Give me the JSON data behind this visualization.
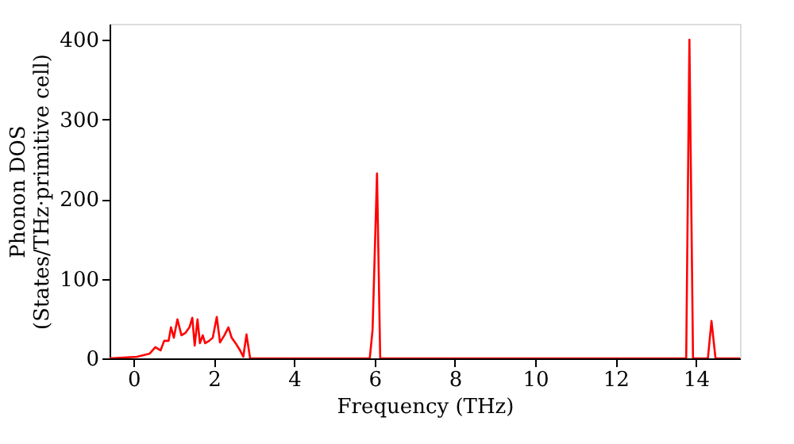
{
  "chart_data": {
    "type": "line",
    "xlabel": "Frequency (THz)",
    "ylabel": "Phonon DOS\n(States/THz·primitive cell)",
    "xlim": [
      -0.6,
      15.1
    ],
    "xticks": [
      0,
      2,
      4,
      6,
      8,
      10,
      12,
      14
    ],
    "ylim": [
      0,
      420
    ],
    "yticks": [
      0,
      100,
      200,
      300,
      400
    ],
    "grid": false,
    "line_style": "solid",
    "series": [
      {
        "color": "#ff0000",
        "x": [
          -0.6,
          0.08,
          0.4,
          0.54,
          0.67,
          0.76,
          0.87,
          0.93,
          1.0,
          1.09,
          1.19,
          1.29,
          1.39,
          1.46,
          1.52,
          1.59,
          1.65,
          1.72,
          1.78,
          1.88,
          1.97,
          2.07,
          2.15,
          2.26,
          2.36,
          2.44,
          2.54,
          2.65,
          2.73,
          2.81,
          2.9,
          5.88,
          5.95,
          6.06,
          6.14,
          13.76,
          13.84,
          13.93,
          14.3,
          14.39,
          14.49,
          15.1
        ],
        "values": [
          0,
          2,
          6,
          14,
          10,
          22,
          22,
          39,
          26,
          49,
          29,
          32,
          39,
          51,
          16,
          49,
          19,
          29,
          19,
          22,
          26,
          52,
          20,
          29,
          39,
          26,
          19,
          10,
          2,
          30,
          0,
          0,
          36,
          232,
          0,
          0,
          400,
          0,
          0,
          47,
          0,
          0
        ]
      }
    ]
  }
}
